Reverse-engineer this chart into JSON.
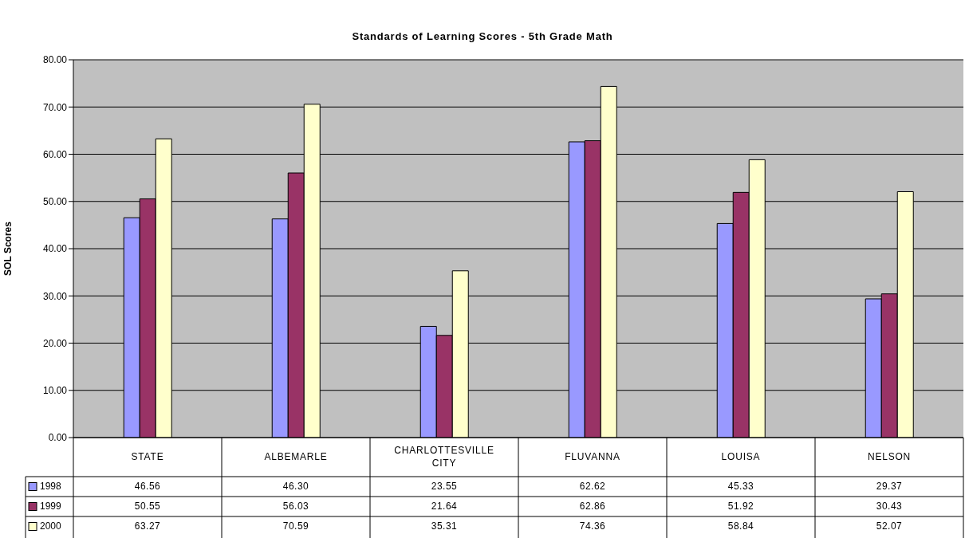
{
  "chart_data": {
    "type": "bar",
    "title": "Standards of Learning Scores - 5th Grade Math",
    "ylabel": "SOL Scores",
    "categories": [
      "STATE",
      "ALBEMARLE",
      "CHARLOTTESVILLE CITY",
      "FLUVANNA",
      "LOUISA",
      "NELSON"
    ],
    "series": [
      {
        "name": "1998",
        "color": "#9999ff",
        "values": [
          46.56,
          46.3,
          23.55,
          62.62,
          45.33,
          29.37
        ],
        "value_labels": [
          "46.56",
          "46.30",
          "23.55",
          "62.62",
          "45.33",
          "29.37"
        ]
      },
      {
        "name": "1999",
        "color": "#993366",
        "values": [
          50.55,
          56.03,
          21.64,
          62.86,
          51.92,
          30.43
        ],
        "value_labels": [
          "50.55",
          "56.03",
          "21.64",
          "62.86",
          "51.92",
          "30.43"
        ]
      },
      {
        "name": "2000",
        "color": "#ffffcc",
        "values": [
          63.27,
          70.59,
          35.31,
          74.36,
          58.84,
          52.07
        ],
        "value_labels": [
          "63.27",
          "70.59",
          "35.31",
          "74.36",
          "58.84",
          "52.07"
        ]
      }
    ],
    "ylim": [
      0,
      80
    ],
    "yticks": [
      {
        "value": 0,
        "label": "0.00"
      },
      {
        "value": 10,
        "label": "10.00"
      },
      {
        "value": 20,
        "label": "20.00"
      },
      {
        "value": 30,
        "label": "30.00"
      },
      {
        "value": 40,
        "label": "40.00"
      },
      {
        "value": 50,
        "label": "50.00"
      },
      {
        "value": 60,
        "label": "60.00"
      },
      {
        "value": 70,
        "label": "70.00"
      },
      {
        "value": 80,
        "label": "80.00"
      }
    ],
    "grid": "y",
    "legend": "bottom left"
  }
}
